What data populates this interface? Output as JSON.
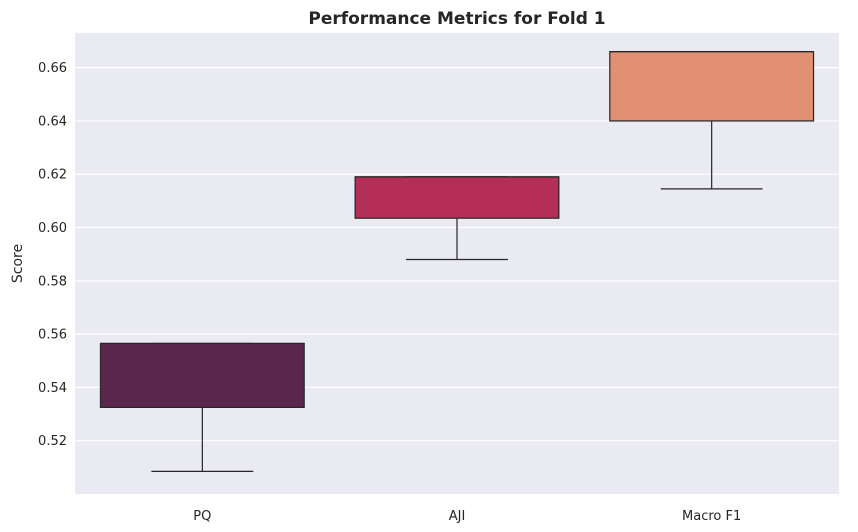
{
  "chart_data": {
    "type": "box",
    "title": "Performance Metrics for Fold 1",
    "xlabel": "",
    "ylabel": "Score",
    "ylim": [
      0.5,
      0.673
    ],
    "yticks": [
      0.52,
      0.54,
      0.56,
      0.58,
      0.6,
      0.62,
      0.64,
      0.66
    ],
    "ytick_labels": [
      "0.52",
      "0.54",
      "0.56",
      "0.58",
      "0.60",
      "0.62",
      "0.64",
      "0.66"
    ],
    "grid": true,
    "categories": [
      "PQ",
      "AJI",
      "Macro F1"
    ],
    "boxes": [
      {
        "category": "PQ",
        "whisker_low": 0.5085,
        "q1": 0.5325,
        "median": 0.5565,
        "q3": 0.5565,
        "whisker_high": 0.5565,
        "color": "#5b264b"
      },
      {
        "category": "AJI",
        "whisker_low": 0.588,
        "q1": 0.6035,
        "median": 0.619,
        "q3": 0.619,
        "whisker_high": 0.619,
        "color": "#b52e58"
      },
      {
        "category": "Macro F1",
        "whisker_low": 0.6145,
        "q1": 0.64,
        "median": 0.666,
        "q3": 0.666,
        "whisker_high": 0.666,
        "color": "#e29073"
      }
    ],
    "background_color": "#eaeaf2",
    "grid_color": "#ffffff"
  }
}
